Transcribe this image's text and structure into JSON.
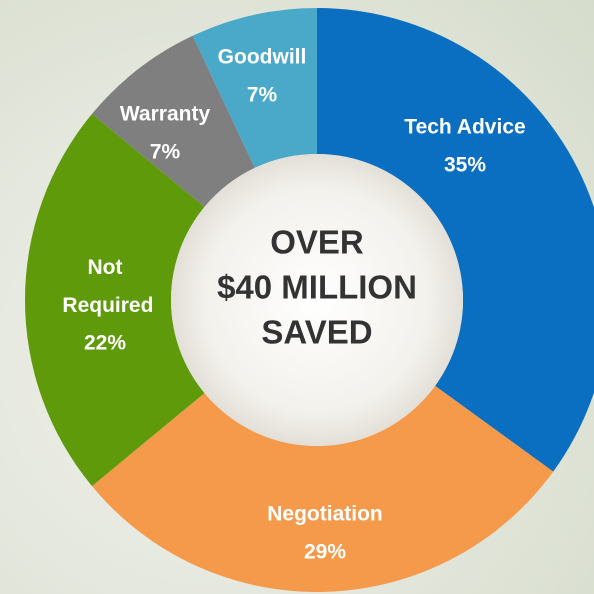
{
  "chart_data": {
    "type": "donut",
    "categories": [
      "Tech Advice",
      "Negotiation",
      "Not Required",
      "Warranty",
      "Goodwill"
    ],
    "values": [
      35,
      29,
      22,
      7,
      7
    ],
    "value_labels": [
      "35%",
      "29%",
      "22%",
      "7%",
      "7%"
    ],
    "colors": [
      "#0b6fc1",
      "#f59a4b",
      "#5f9a0b",
      "#7f7f7f",
      "#4aa8c8"
    ],
    "center_text": [
      "OVER",
      "$40 MILLION",
      "SAVED"
    ]
  }
}
